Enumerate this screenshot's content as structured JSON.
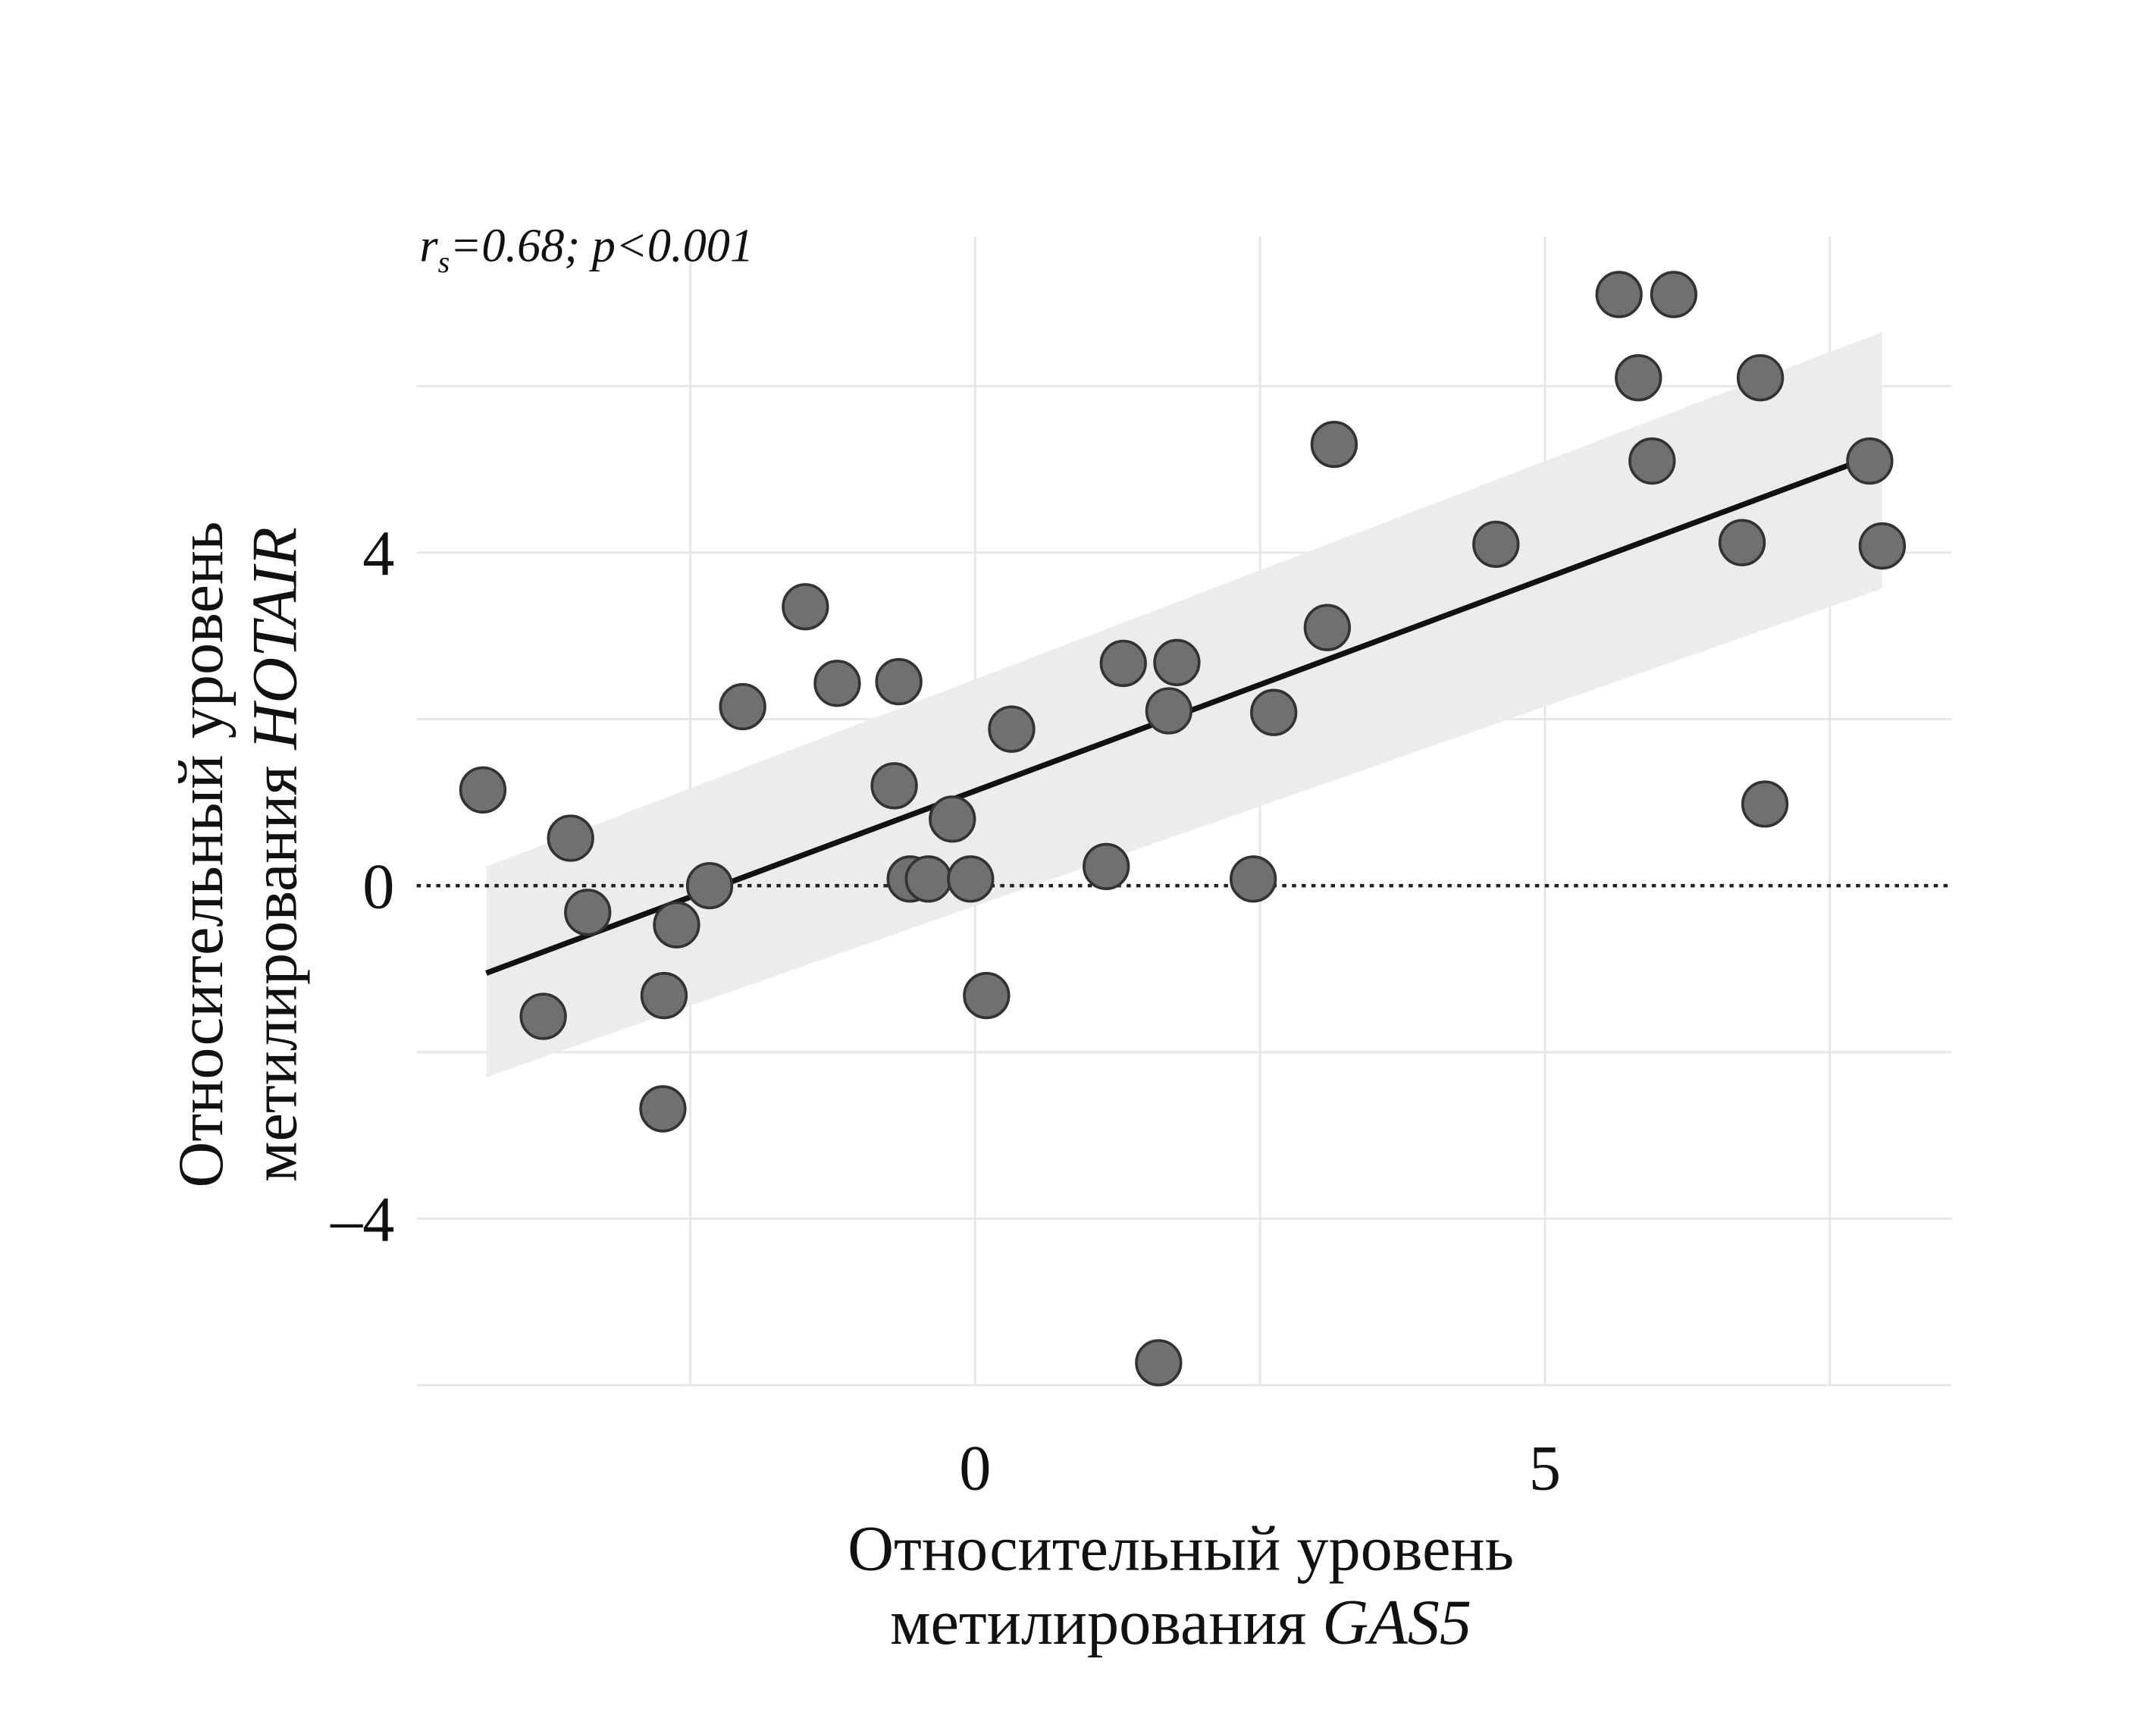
{
  "chart_data": {
    "type": "scatter",
    "annotation": {
      "r_symbol": "r",
      "r_sub": "s",
      "text": "=0.68; p<0.001"
    },
    "xlabel": {
      "line1": "Относительный уровень",
      "line2_prefix": "метилирования ",
      "line2_gene": "GAS5"
    },
    "ylabel": {
      "line1": "Относительный уровень",
      "line2_prefix": "метилирования ",
      "line2_gene": "HOTAIR"
    },
    "xlim": [
      -4.9,
      8.57
    ],
    "ylim": [
      -6,
      7.8
    ],
    "x_gridlines": [
      -2.5,
      0,
      2.5,
      5,
      7.5
    ],
    "y_gridlines": [
      -6,
      -4,
      -2,
      0,
      2,
      4,
      6
    ],
    "x_ticks": [
      {
        "value": 0,
        "label": "0"
      },
      {
        "value": 5,
        "label": "5"
      }
    ],
    "y_ticks": [
      {
        "value": 4,
        "label": "4"
      },
      {
        "value": 0,
        "label": "0"
      },
      {
        "value": -4,
        "label": "–4"
      }
    ],
    "reference_line_y": 0,
    "points": [
      [
        -4.32,
        1.15
      ],
      [
        -3.55,
        0.57
      ],
      [
        -3.4,
        -0.32
      ],
      [
        -3.79,
        -1.57
      ],
      [
        -2.73,
        -1.32
      ],
      [
        -2.74,
        -2.68
      ],
      [
        -2.62,
        -0.47
      ],
      [
        -2.33,
        0.0
      ],
      [
        -2.04,
        2.15
      ],
      [
        -1.49,
        3.35
      ],
      [
        -1.21,
        2.43
      ],
      [
        -0.67,
        2.45
      ],
      [
        -0.71,
        1.2
      ],
      [
        -0.57,
        0.08
      ],
      [
        -0.41,
        0.08
      ],
      [
        -0.2,
        0.8
      ],
      [
        -0.04,
        0.08
      ],
      [
        0.1,
        -1.32
      ],
      [
        0.32,
        1.88
      ],
      [
        1.15,
        0.23
      ],
      [
        1.3,
        2.67
      ],
      [
        1.7,
        2.1
      ],
      [
        1.77,
        2.68
      ],
      [
        1.61,
        -5.73
      ],
      [
        2.44,
        0.08
      ],
      [
        2.62,
        2.08
      ],
      [
        3.09,
        3.1
      ],
      [
        3.15,
        5.3
      ],
      [
        4.57,
        4.1
      ],
      [
        5.65,
        7.1
      ],
      [
        6.13,
        7.1
      ],
      [
        5.82,
        6.1
      ],
      [
        5.94,
        5.1
      ],
      [
        6.73,
        4.12
      ],
      [
        6.89,
        6.1
      ],
      [
        6.93,
        0.98
      ],
      [
        7.85,
        5.1
      ],
      [
        7.96,
        4.08
      ]
    ],
    "regression": {
      "x": [
        -4.29,
        7.96
      ],
      "y": [
        -1.05,
        5.2
      ]
    },
    "confidence_band": {
      "x": [
        -4.29,
        7.96
      ],
      "upper": [
        0.23,
        6.65
      ],
      "lower": [
        -2.3,
        3.57
      ]
    },
    "colors": {
      "point": "#707070",
      "point_stroke": "#333333",
      "line": "#111111",
      "band": "#ececec",
      "grid": "#e6e6e6"
    }
  }
}
